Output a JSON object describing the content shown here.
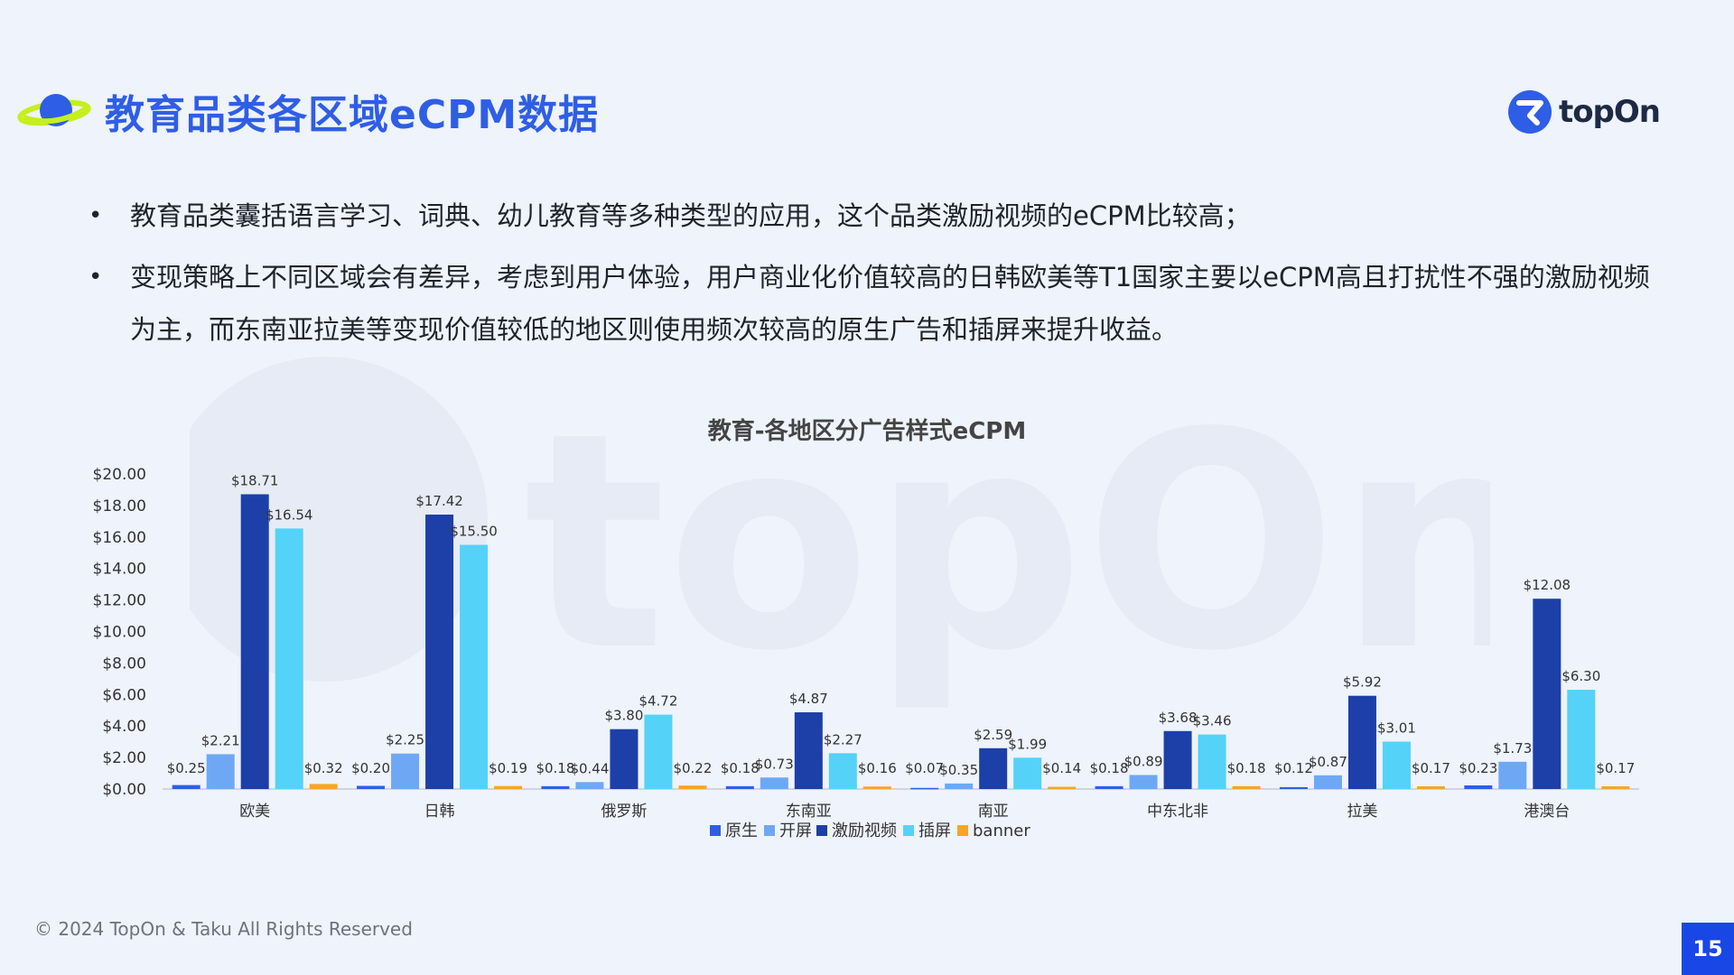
{
  "header": {
    "title": "教育品类各区域eCPM数据",
    "logo_text": "topOn"
  },
  "bullets": [
    "教育品类囊括语言学习、词典、幼儿教育等多种类型的应用，这个品类激励视频的eCPM比较高；",
    "变现策略上不同区域会有差异，考虑到用户体验，用户商业化价值较高的日韩欧美等T1国家主要以eCPM高且打扰性不强的激励视频为主，而东南亚拉美等变现价值较低的地区则使用频次较高的原生广告和插屏来提升收益。"
  ],
  "chart_data": {
    "type": "bar",
    "title": "教育-各地区分广告样式eCPM",
    "categories": [
      "欧美",
      "日韩",
      "俄罗斯",
      "东南亚",
      "南亚",
      "中东北非",
      "拉美",
      "港澳台"
    ],
    "series": [
      {
        "name": "原生",
        "color": "#2f5ee6",
        "values": [
          0.25,
          0.2,
          0.18,
          0.18,
          0.07,
          0.18,
          0.12,
          0.23
        ],
        "labels": [
          "$0.25",
          "$0.20",
          "$0.18",
          "$0.18",
          "$0.07",
          "$0.18",
          "$0.12",
          "$0.23"
        ]
      },
      {
        "name": "开屏",
        "color": "#6ea8f5",
        "values": [
          2.21,
          2.25,
          0.44,
          0.73,
          0.35,
          0.89,
          0.87,
          1.73
        ],
        "labels": [
          "$2.21",
          "$2.25",
          "$0.44",
          "$0.73",
          "$0.35",
          "$0.89",
          "$0.87",
          "$1.73"
        ]
      },
      {
        "name": "激励视频",
        "color": "#1d3fa8",
        "values": [
          18.71,
          17.42,
          3.8,
          4.87,
          2.59,
          3.68,
          5.92,
          12.08
        ],
        "labels": [
          "$18.71",
          "$17.42",
          "$3.80",
          "$4.87",
          "$2.59",
          "$3.68",
          "$5.92",
          "$12.08"
        ]
      },
      {
        "name": "插屏",
        "color": "#55d2f7",
        "values": [
          16.54,
          15.5,
          4.72,
          2.27,
          1.99,
          3.46,
          3.01,
          6.3
        ],
        "labels": [
          "$16.54",
          "$15.50",
          "$4.72",
          "$2.27",
          "$1.99",
          "$3.46",
          "$3.01",
          "$6.30"
        ]
      },
      {
        "name": "banner",
        "color": "#f5a623",
        "values": [
          0.32,
          0.19,
          0.22,
          0.16,
          0.14,
          0.18,
          0.17,
          0.17
        ],
        "labels": [
          "$0.32",
          "$0.19",
          "$0.22",
          "$0.16",
          "$0.14",
          "$0.18",
          "$0.17",
          "$0.17"
        ]
      }
    ],
    "y_ticks": [
      "$0.00",
      "$2.00",
      "$4.00",
      "$6.00",
      "$8.00",
      "$10.00",
      "$12.00",
      "$14.00",
      "$16.00",
      "$18.00",
      "$20.00"
    ],
    "ylim": [
      0,
      20
    ],
    "legend_position": "bottom",
    "grid": false
  },
  "footer": {
    "copyright": "© 2024 TopOn & Taku All Rights Reserved",
    "page_number": "15"
  }
}
